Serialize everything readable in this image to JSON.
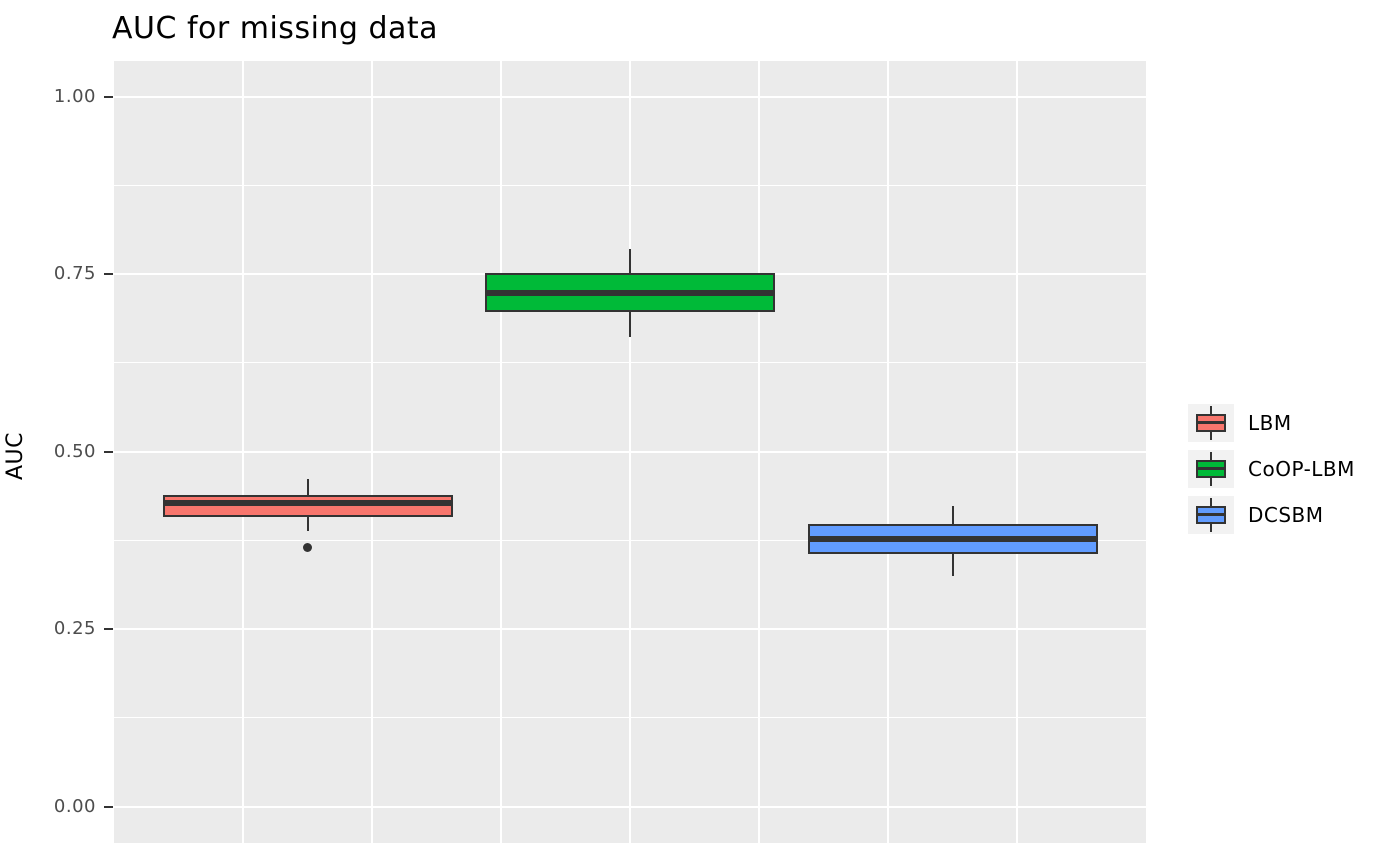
{
  "chart_data": {
    "type": "boxplot",
    "title": "AUC for missing data",
    "ylabel": "AUC",
    "xlabel": "",
    "ylim": [
      -0.05,
      1.05
    ],
    "yticks": [
      0.0,
      0.25,
      0.5,
      0.75,
      1.0
    ],
    "ytick_labels": [
      "0.00",
      "0.25",
      "0.50",
      "0.75",
      "1.00"
    ],
    "grid": "white major and minor gridlines on grey panel, no x tick labels",
    "legend_position": "right",
    "series": [
      {
        "name": "LBM",
        "color": "#F8766D",
        "whisker_low": 0.388,
        "q1": 0.408,
        "median": 0.428,
        "q3": 0.439,
        "whisker_high": 0.462,
        "outliers": [
          0.365
        ]
      },
      {
        "name": "CoOP-LBM",
        "color": "#00BA38",
        "whisker_low": 0.662,
        "q1": 0.697,
        "median": 0.724,
        "q3": 0.752,
        "whisker_high": 0.786,
        "outliers": []
      },
      {
        "name": "DCSBM",
        "color": "#619CFF",
        "whisker_low": 0.325,
        "q1": 0.356,
        "median": 0.377,
        "q3": 0.398,
        "whisker_high": 0.424,
        "outliers": []
      }
    ]
  },
  "style": {
    "panel_bg": "#EBEBEB",
    "grid_color": "#FFFFFF",
    "box_stroke": "#333333",
    "median_color": "#333333",
    "outlier_color": "#333333",
    "tick_label_color": "#4D4D4D",
    "title_color": "#000000",
    "legend_key_bg": "#F2F2F2"
  }
}
